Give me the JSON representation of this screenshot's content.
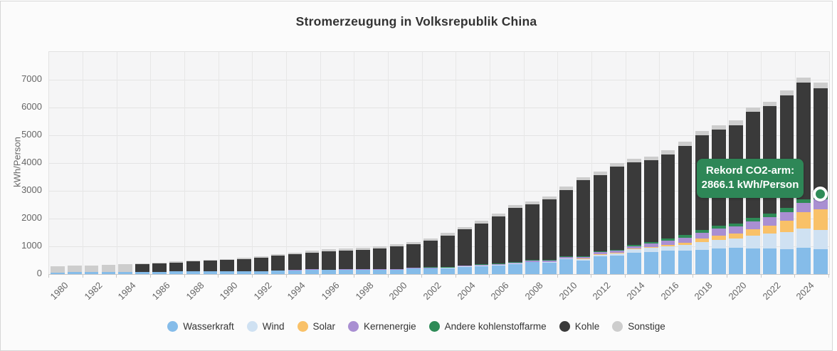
{
  "title": "Stromerzeugung in Volksrepublik China",
  "y_axis": {
    "title": "kWh/Person",
    "ticks": [
      0,
      1000,
      2000,
      3000,
      4000,
      5000,
      6000,
      7000
    ],
    "max": 8000
  },
  "x_axis": {
    "tick_years": [
      1980,
      1982,
      1984,
      1986,
      1988,
      1990,
      1992,
      1994,
      1996,
      1998,
      2000,
      2002,
      2004,
      2006,
      2008,
      2010,
      2012,
      2014,
      2016,
      2018,
      2020,
      2022,
      2024
    ]
  },
  "tooltip": {
    "line1": "Rekord CO2-arm:",
    "line2": "2866.1 kWh/Person",
    "bg_color": "#2e8757"
  },
  "annotation": {
    "year": 2025,
    "value": 2866.1,
    "marker_color": "#2e8b57"
  },
  "colors": {
    "plot_bg": "#f5f5f6",
    "grid": "#e4e4e4",
    "axis_line": "#c9c9c9",
    "widget_bg": "#fbfbfb"
  },
  "chart_data": {
    "type": "bar",
    "stacked": true,
    "title": "Stromerzeugung in Volksrepublik China",
    "xlabel": "",
    "ylabel": "kWh/Person",
    "ylim": [
      0,
      8000
    ],
    "grid": true,
    "legend_position": "bottom",
    "categories": [
      1980,
      1981,
      1982,
      1983,
      1984,
      1985,
      1986,
      1987,
      1988,
      1989,
      1990,
      1991,
      1992,
      1993,
      1994,
      1995,
      1996,
      1997,
      1998,
      1999,
      2000,
      2001,
      2002,
      2003,
      2004,
      2005,
      2006,
      2007,
      2008,
      2009,
      2010,
      2011,
      2012,
      2013,
      2014,
      2015,
      2016,
      2017,
      2018,
      2019,
      2020,
      2021,
      2022,
      2023,
      2024,
      2025
    ],
    "series": [
      {
        "name": "Wasserkraft",
        "color": "#85bce9",
        "values": [
          60,
          66,
          74,
          84,
          84,
          88,
          89,
          93,
          99,
          106,
          112,
          109,
          113,
          128,
          140,
          158,
          154,
          159,
          163,
          159,
          175,
          218,
          222,
          219,
          272,
          303,
          328,
          369,
          437,
          429,
          533,
          499,
          641,
          656,
          779,
          806,
          850,
          857,
          883,
          930,
          944,
          921,
          917,
          895,
          940,
          905
        ]
      },
      {
        "name": "Wind",
        "color": "#cfe1f2",
        "values": [
          0,
          0,
          0,
          0,
          0,
          0,
          0,
          0,
          0,
          0,
          0,
          0,
          0,
          0,
          0,
          0,
          0,
          0,
          0,
          0,
          1,
          1,
          1,
          1,
          1,
          2,
          3,
          4,
          10,
          20,
          33,
          52,
          71,
          103,
          115,
          133,
          155,
          197,
          263,
          290,
          327,
          465,
          537,
          624,
          707,
          695
        ]
      },
      {
        "name": "Solar",
        "color": "#f9c168",
        "values": [
          0,
          0,
          0,
          0,
          0,
          0,
          0,
          0,
          0,
          0,
          0,
          0,
          0,
          0,
          0,
          0,
          0,
          0,
          0,
          0,
          0,
          0,
          0,
          0,
          0,
          0,
          0,
          0,
          0,
          0,
          1,
          2,
          4,
          7,
          17,
          29,
          48,
          86,
          127,
          161,
          182,
          231,
          298,
          411,
          593,
          745
        ]
      },
      {
        "name": "Kernenergie",
        "color": "#a98fd2",
        "values": [
          0,
          0,
          0,
          0,
          0,
          0,
          0,
          0,
          0,
          0,
          0,
          0,
          0,
          0,
          11,
          11,
          12,
          12,
          11,
          12,
          13,
          14,
          20,
          34,
          39,
          41,
          42,
          47,
          52,
          53,
          55,
          64,
          72,
          82,
          97,
          124,
          154,
          179,
          213,
          248,
          258,
          287,
          294,
          305,
          316,
          335
        ]
      },
      {
        "name": "Andere kohlenstoffarme",
        "color": "#2e8b57",
        "values": [
          0,
          0,
          0,
          0,
          0,
          0,
          0,
          0,
          0,
          0,
          0,
          0,
          0,
          0,
          0,
          0,
          0,
          0,
          0,
          0,
          2,
          2,
          2,
          2,
          3,
          4,
          5,
          6,
          8,
          12,
          18,
          23,
          28,
          35,
          44,
          53,
          64,
          79,
          93,
          112,
          120,
          131,
          137,
          142,
          148,
          186.1
        ]
      },
      {
        "name": "Kohle",
        "color": "#3a3a3a",
        "values": [
          0,
          0,
          0,
          0,
          0,
          272,
          300,
          330,
          358,
          375,
          390,
          432,
          482,
          528,
          566,
          601,
          652,
          680,
          692,
          744,
          806,
          852,
          966,
          1140,
          1290,
          1469,
          1705,
          1956,
          2000,
          2167,
          2390,
          2740,
          2760,
          2990,
          2980,
          2960,
          3040,
          3220,
          3420,
          3470,
          3540,
          3800,
          3860,
          4060,
          4190,
          3820
        ]
      },
      {
        "name": "Sonstige",
        "color": "#cdcdcd",
        "values": [
          235,
          240,
          247,
          256,
          278,
          30,
          32,
          35,
          38,
          42,
          45,
          48,
          52,
          57,
          62,
          66,
          70,
          72,
          74,
          75,
          78,
          79,
          82,
          88,
          95,
          100,
          103,
          108,
          109,
          110,
          116,
          120,
          124,
          127,
          131,
          135,
          140,
          146,
          151,
          156,
          161,
          165,
          172,
          180,
          186,
          214
        ]
      }
    ],
    "annotation": {
      "label": "Rekord CO2-arm:",
      "value_text": "2866.1 kWh/Person",
      "year": 2025,
      "y": 2866.1
    }
  }
}
